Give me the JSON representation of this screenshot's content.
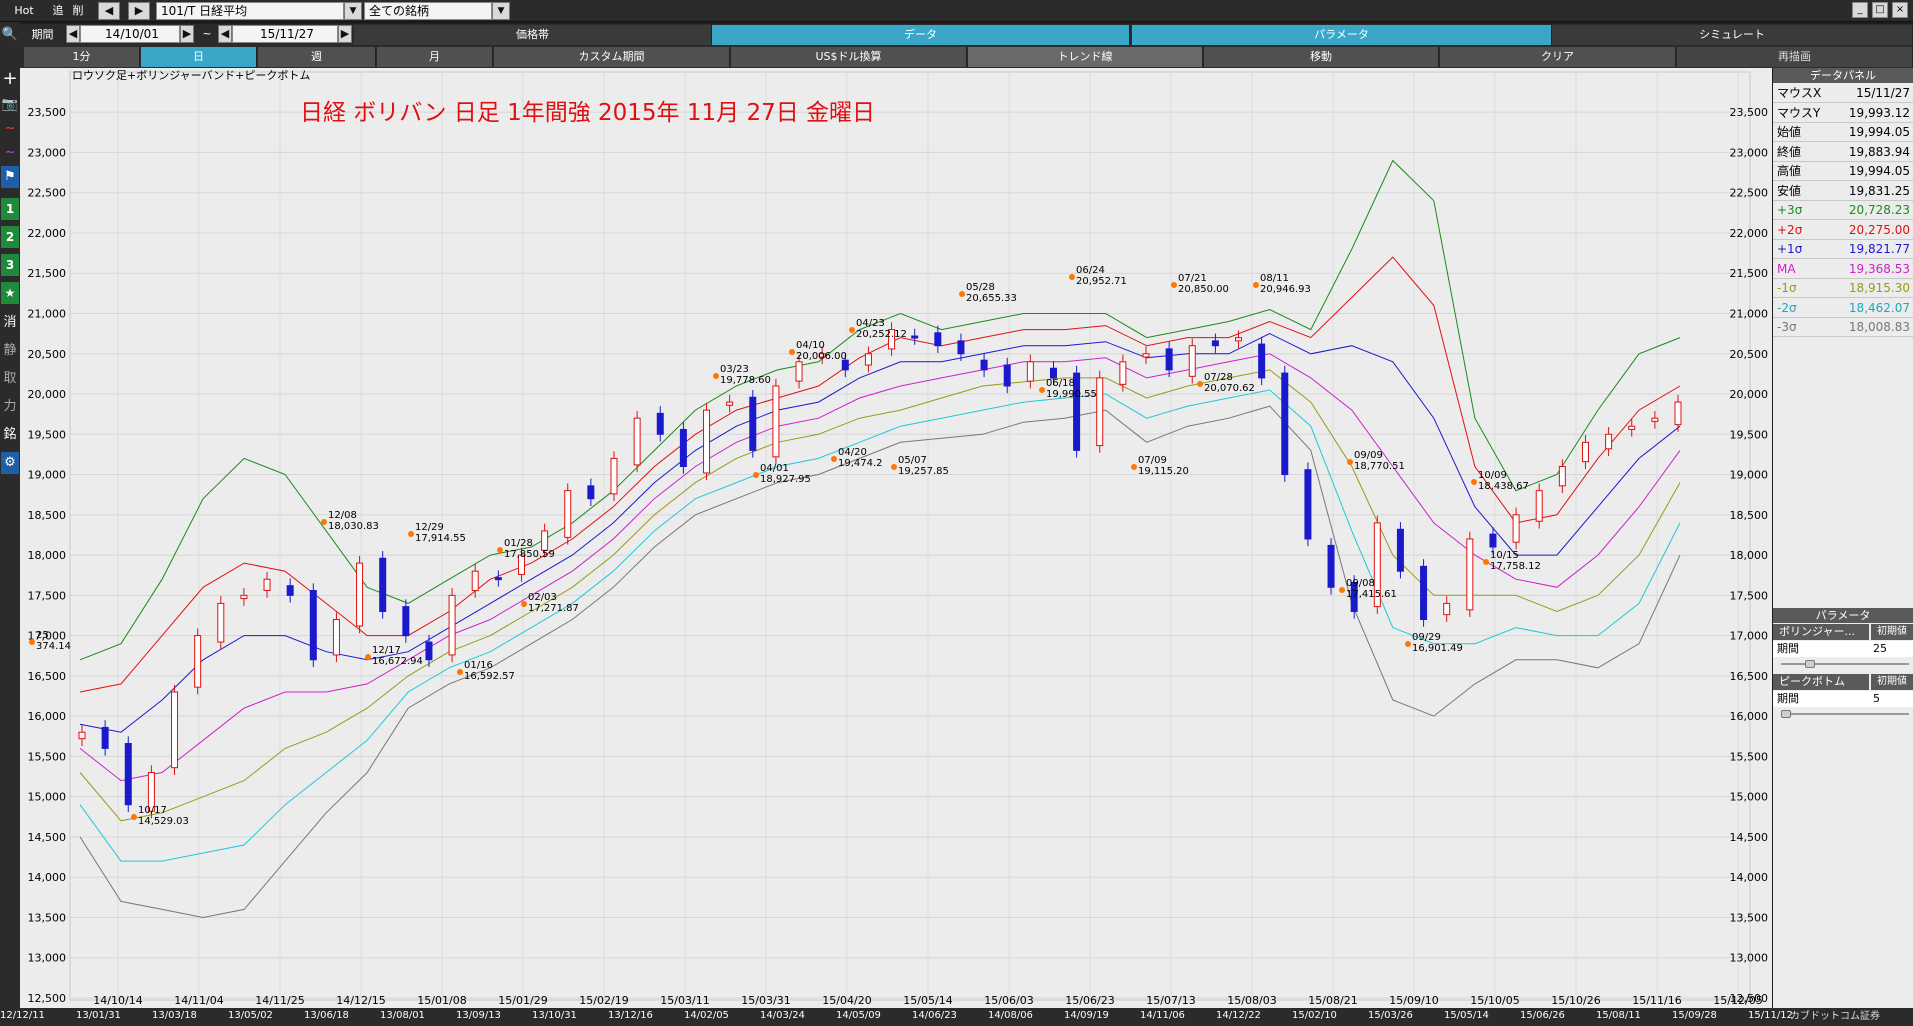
{
  "toolbar": {
    "hot": "Hot",
    "add": "追",
    "del": "削",
    "prev": "◀",
    "next": "▶",
    "symbol": "101/T 日経平均",
    "universe": "全ての銘柄",
    "period_label": "期間",
    "date_from": "14/10/01",
    "tilde": "~",
    "date_to": "15/11/27",
    "sections": [
      "価格帯",
      "データ",
      "パラメータ",
      "シミュレート"
    ],
    "timeframes": [
      "1分",
      "日",
      "週",
      "月",
      "カスタム期間",
      "US$ドル換算",
      "トレンド線",
      "移動",
      "クリア",
      "再描画"
    ],
    "win_min": "_",
    "win_max": "□",
    "win_close": "×"
  },
  "leftbar": [
    "🔍",
    "+",
    "📷",
    "~",
    "~",
    "⚑",
    "1",
    "2",
    "3",
    "★",
    "消",
    "静",
    "取",
    "力",
    "銘",
    "⚙"
  ],
  "chart_data": {
    "type": "candlestick",
    "legend_caption": "ロウソク足+ボリンジャーバンド+ピークボトム",
    "title": "日経  ボリバン  日足  1年間強       2015年 11月 27日 金曜日",
    "y_ticks": [
      23500,
      23000,
      22500,
      22000,
      21500,
      21000,
      20500,
      20000,
      19500,
      19000,
      18500,
      18000,
      17500,
      17000,
      16500,
      16000,
      15500,
      15000,
      14500,
      14000,
      13500,
      13000,
      12500
    ],
    "y_tick_labels": [
      "23,500",
      "23,000",
      "22,500",
      "22,000",
      "21,500",
      "21,000",
      "20,500",
      "20,000",
      "19,500",
      "19,000",
      "18,500",
      "18,000",
      "17,500",
      "17,000",
      "16,500",
      "16,000",
      "15,500",
      "15,000",
      "14,500",
      "14,000",
      "13,500",
      "13,000",
      "12,500"
    ],
    "ylim": [
      12500,
      23800
    ],
    "x_ticks": [
      "14/10/14",
      "14/11/04",
      "14/11/25",
      "14/12/15",
      "15/01/08",
      "15/01/29",
      "15/02/19",
      "15/03/11",
      "15/03/31",
      "15/04/20",
      "15/05/14",
      "15/06/03",
      "15/06/23",
      "15/07/13",
      "15/08/03",
      "15/08/21",
      "15/09/10",
      "15/10/05",
      "15/10/26",
      "15/11/16",
      "15/12/05"
    ],
    "bands": {
      "p3": {
        "name": "+3σ",
        "color": "#1a8a1a",
        "values": [
          16700,
          16900,
          17700,
          18700,
          19200,
          19000,
          18300,
          17600,
          17400,
          17700,
          18000,
          18100,
          18400,
          18800,
          19300,
          19800,
          20100,
          20300,
          20400,
          20800,
          21000,
          20800,
          20900,
          21000,
          21000,
          21000,
          20700,
          20800,
          20900,
          21050,
          20800,
          21800,
          22900,
          22400,
          19700,
          18800,
          19000,
          19800,
          20500,
          20700
        ]
      },
      "p2": {
        "name": "+2σ",
        "color": "#e01010",
        "values": [
          16300,
          16400,
          17000,
          17600,
          17900,
          17800,
          17400,
          17000,
          17000,
          17300,
          17700,
          17900,
          18200,
          18600,
          19100,
          19500,
          19800,
          19950,
          20100,
          20450,
          20700,
          20600,
          20700,
          20800,
          20800,
          20850,
          20600,
          20700,
          20700,
          20900,
          20700,
          21200,
          21700,
          21100,
          19100,
          18400,
          18500,
          19200,
          19800,
          20100
        ]
      },
      "p1": {
        "name": "+1σ",
        "color": "#1a1acc",
        "values": [
          15900,
          15800,
          16200,
          16700,
          17000,
          17000,
          16800,
          16700,
          16800,
          17100,
          17400,
          17700,
          18000,
          18400,
          18900,
          19300,
          19600,
          19800,
          19900,
          20200,
          20400,
          20400,
          20500,
          20600,
          20600,
          20650,
          20450,
          20500,
          20500,
          20750,
          20500,
          20600,
          20400,
          19700,
          18600,
          18000,
          18000,
          18600,
          19200,
          19600
        ]
      },
      "ma": {
        "name": "MA",
        "color": "#cc22cc",
        "values": [
          15600,
          15200,
          15300,
          15700,
          16100,
          16300,
          16300,
          16400,
          16700,
          17000,
          17200,
          17500,
          17800,
          18200,
          18700,
          19100,
          19400,
          19600,
          19700,
          19950,
          20100,
          20200,
          20300,
          20400,
          20400,
          20450,
          20200,
          20300,
          20400,
          20500,
          20200,
          19800,
          19100,
          18400,
          18000,
          17700,
          17600,
          18000,
          18600,
          19300
        ]
      },
      "m1": {
        "name": "-1σ",
        "color": "#99991a",
        "values": [
          15300,
          14700,
          14800,
          15000,
          15200,
          15600,
          15800,
          16100,
          16500,
          16800,
          17000,
          17300,
          17600,
          18000,
          18500,
          18900,
          19200,
          19400,
          19500,
          19700,
          19800,
          19950,
          20100,
          20150,
          20200,
          20200,
          19950,
          20100,
          20200,
          20300,
          19900,
          19100,
          18000,
          17500,
          17500,
          17500,
          17300,
          17500,
          18000,
          18900
        ]
      },
      "m2": {
        "name": "-2σ",
        "color": "#22c8d8",
        "values": [
          14900,
          14200,
          14200,
          14300,
          14400,
          14900,
          15300,
          15700,
          16300,
          16600,
          16800,
          17100,
          17400,
          17800,
          18300,
          18700,
          18900,
          19100,
          19200,
          19400,
          19600,
          19700,
          19800,
          19900,
          19950,
          20000,
          19700,
          19850,
          19950,
          20050,
          19600,
          18300,
          17100,
          16900,
          16900,
          17100,
          17000,
          17000,
          17400,
          18400
        ]
      },
      "m3": {
        "name": "-3σ",
        "color": "#777777",
        "values": [
          14500,
          13700,
          13600,
          13500,
          13600,
          14200,
          14800,
          15300,
          16100,
          16400,
          16600,
          16900,
          17200,
          17600,
          18100,
          18500,
          18700,
          18900,
          19000,
          19200,
          19400,
          19450,
          19500,
          19650,
          19700,
          19800,
          19400,
          19600,
          19700,
          19850,
          19300,
          17400,
          16200,
          16000,
          16400,
          16700,
          16700,
          16600,
          16900,
          18000
        ]
      }
    },
    "closes": [
      15800,
      15600,
      14900,
      15300,
      16300,
      17000,
      17400,
      17500,
      17700,
      17500,
      16700,
      17200,
      17900,
      17300,
      17000,
      16700,
      17500,
      17800,
      17700,
      18000,
      18300,
      18800,
      18700,
      19200,
      19700,
      19500,
      19100,
      19800,
      19900,
      19300,
      20100,
      20400,
      20500,
      20300,
      20500,
      20800,
      20700,
      20600,
      20500,
      20300,
      20100,
      20400,
      20200,
      19300,
      20200,
      20400,
      20500,
      20300,
      20600,
      20600,
      20700,
      20200,
      19000,
      18200,
      17600,
      17300,
      18400,
      17800,
      17200,
      17400,
      18200,
      18100,
      18500,
      18800,
      19100,
      19400,
      19500,
      19600,
      19700,
      19900
    ]
  },
  "peaks": [
    {
      "date": "25",
      "value": "374.14"
    },
    {
      "date": "10/17",
      "value": "14,529.03"
    },
    {
      "date": "12/08",
      "value": "18,030.83"
    },
    {
      "date": "12/17",
      "value": "16,672.94"
    },
    {
      "date": "12/29",
      "value": "17,914.55"
    },
    {
      "date": "01/16",
      "value": "16,592.57"
    },
    {
      "date": "01/28",
      "value": "17,850.59"
    },
    {
      "date": "02/03",
      "value": "17,271.87"
    },
    {
      "date": "03/23",
      "value": "19,778.60"
    },
    {
      "date": "04/01",
      "value": "18,927.95"
    },
    {
      "date": "04/10",
      "value": "20,006.00"
    },
    {
      "date": "04/20",
      "value": "19,474.2"
    },
    {
      "date": "04/23",
      "value": "20,252.12"
    },
    {
      "date": "05/07",
      "value": "19,257.85"
    },
    {
      "date": "05/28",
      "value": "20,655.33"
    },
    {
      "date": "06/18",
      "value": "19,990.55"
    },
    {
      "date": "06/24",
      "value": "20,952.71"
    },
    {
      "date": "07/09",
      "value": "19,115.20"
    },
    {
      "date": "07/21",
      "value": "20,850.00"
    },
    {
      "date": "07/28",
      "value": "20,070.62"
    },
    {
      "date": "08/11",
      "value": "20,946.93"
    },
    {
      "date": "09/08",
      "value": "17,415.61"
    },
    {
      "date": "09/09",
      "value": "18,770.51"
    },
    {
      "date": "09/29",
      "value": "16,901.49"
    },
    {
      "date": "10/09",
      "value": "18,438.67"
    },
    {
      "date": "10/15",
      "value": "17,758.12"
    }
  ],
  "panel": {
    "title": "データパネル",
    "rows": [
      {
        "k": "マウスX",
        "v": "15/11/27",
        "color": "#000000"
      },
      {
        "k": "マウスY",
        "v": "19,993.12",
        "color": "#000000"
      },
      {
        "k": "始値",
        "v": "19,994.05",
        "color": "#000000"
      },
      {
        "k": "終値",
        "v": "19,883.94",
        "color": "#000000"
      },
      {
        "k": "高値",
        "v": "19,994.05",
        "color": "#000000"
      },
      {
        "k": "安値",
        "v": "19,831.25",
        "color": "#000000"
      },
      {
        "k": "+3σ",
        "v": "20,728.23",
        "color": "#1a8a1a"
      },
      {
        "k": "+2σ",
        "v": "20,275.00",
        "color": "#e01010"
      },
      {
        "k": "+1σ",
        "v": "19,821.77",
        "color": "#1a1acc"
      },
      {
        "k": "MA",
        "v": "19,368.53",
        "color": "#cc22cc"
      },
      {
        "k": "-1σ",
        "v": "18,915.30",
        "color": "#99991a"
      },
      {
        "k": "-2σ",
        "v": "18,462.07",
        "color": "#22a8b8"
      },
      {
        "k": "-3σ",
        "v": "18,008.83",
        "color": "#777777"
      }
    ],
    "params_title": "パラメータ",
    "bb_name": "ボリンジャー...",
    "bb_init": "初期値",
    "bb_period_label": "期間",
    "bb_period_value": "25",
    "pb_name": "ピークボトム",
    "pb_init": "初期値",
    "pb_period_label": "期間",
    "pb_period_value": "5",
    "bb_slider_fraction": 0.2,
    "pb_slider_fraction": 0.0
  },
  "bottom_dates": [
    "12/12/11",
    "13/01/31",
    "13/03/18",
    "13/05/02",
    "13/06/18",
    "13/08/01",
    "13/09/13",
    "13/10/31",
    "13/12/16",
    "14/02/05",
    "14/03/24",
    "14/05/09",
    "14/06/23",
    "14/08/06",
    "14/09/19",
    "14/11/06",
    "14/12/22",
    "15/02/10",
    "15/03/26",
    "15/05/14",
    "15/06/26",
    "15/08/11",
    "15/09/28",
    "15/11/12"
  ],
  "bottom_brand": "カブドットコム証券"
}
